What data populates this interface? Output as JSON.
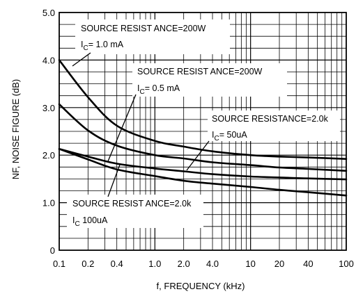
{
  "chart_data": {
    "type": "line",
    "title": "",
    "xlabel": "f, FREQUENCY (kHz)",
    "ylabel": "NF, NOISE FIGURE (dB)",
    "xscale": "log",
    "xlim": [
      0.1,
      100
    ],
    "ylim": [
      0,
      5
    ],
    "grid": "log-x major and minor, y every 0.25 dB",
    "xticks": [
      0.1,
      0.2,
      0.4,
      1,
      2,
      4,
      10,
      20,
      40,
      100
    ],
    "xtick_labels": [
      "0.1",
      "0.2",
      "0.4",
      "1.0",
      "2.0",
      "4.0",
      "10",
      "20",
      "40",
      "100"
    ],
    "yticks": [
      0,
      1,
      2,
      3,
      4,
      5
    ],
    "ytick_labels": [
      "0",
      "1.0",
      "2.0",
      "3.0",
      "4.0",
      "5.0"
    ],
    "series": [
      {
        "x": [
          0.1,
          0.2,
          0.4,
          1,
          2,
          4,
          10,
          20,
          40,
          100
        ],
        "y": [
          4.0,
          3.22,
          2.62,
          2.3,
          2.18,
          2.08,
          2.0,
          1.97,
          1.95,
          1.92
        ]
      },
      {
        "x": [
          0.1,
          0.2,
          0.4,
          1,
          2,
          4,
          10,
          20,
          40,
          100
        ],
        "y": [
          3.07,
          2.52,
          2.2,
          2.0,
          1.93,
          1.85,
          1.79,
          1.74,
          1.71,
          1.67
        ]
      },
      {
        "x": [
          0.1,
          0.2,
          0.4,
          1,
          2,
          4,
          10,
          20,
          40,
          100
        ],
        "y": [
          2.13,
          1.97,
          1.82,
          1.72,
          1.66,
          1.6,
          1.55,
          1.53,
          1.51,
          1.49
        ]
      },
      {
        "x": [
          0.1,
          0.2,
          0.4,
          1,
          2,
          4,
          10,
          20,
          40,
          100
        ],
        "y": [
          2.13,
          1.91,
          1.7,
          1.56,
          1.46,
          1.4,
          1.33,
          1.27,
          1.22,
          1.15
        ]
      }
    ],
    "annotations": [
      {
        "line1": "SOURCE RESIST ANCE=200W",
        "line2_prefix": "I",
        "line2_sub": "C",
        "line2_value": "= 1.0 mA"
      },
      {
        "line1": "SOURCE RESIST ANCE=200W",
        "line2_prefix": "I",
        "line2_sub": "C",
        "line2_value": "= 0.5 mA"
      },
      {
        "line1": "SOURCE RESISTANCE=2.0k",
        "line2_prefix": "I",
        "line2_sub": "C",
        "line2_value": "=  50uA"
      },
      {
        "line1": "SOURCE RESIST ANCE=2.0k",
        "line2_prefix": "I",
        "line2_sub": "C",
        "line2_value": "  100uA"
      }
    ]
  }
}
